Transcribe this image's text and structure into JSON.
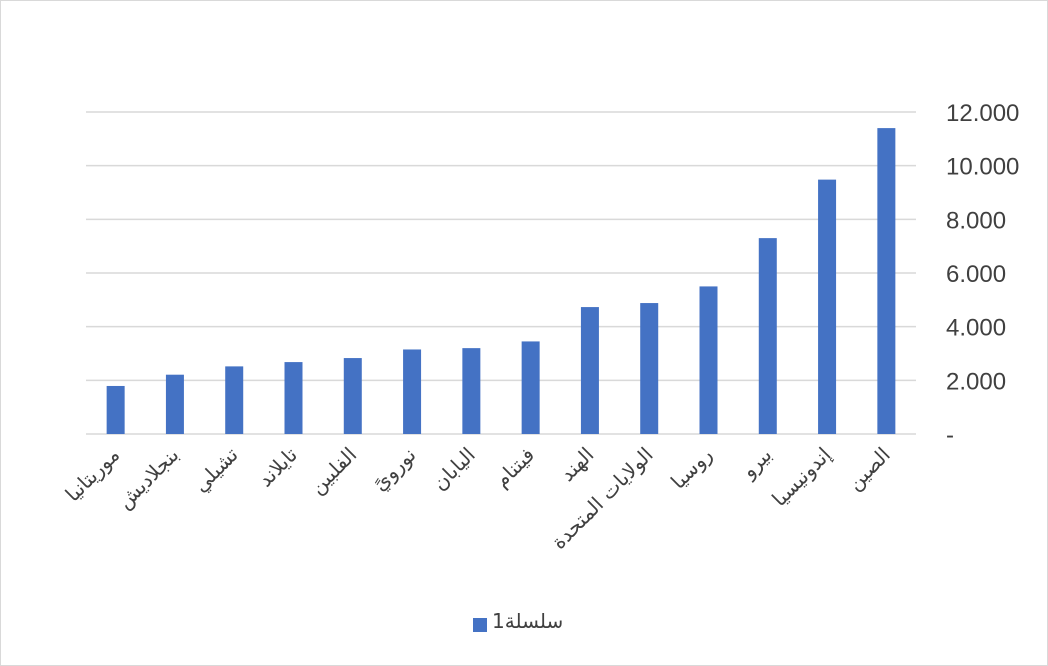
{
  "chart_data": {
    "type": "bar",
    "categories": [
      "الصين",
      "إندونيسيا",
      "بيرو",
      "روسيا",
      "الولايات المتحدة",
      "الهند",
      "فيتنام",
      "اليابان",
      "نورويً",
      "الفلبين",
      "تايلاند",
      "تشيلي",
      "بنجلاديش",
      "موريتانيا"
    ],
    "series": [
      {
        "name": "سلسلة1",
        "values": [
          11400,
          9480,
          7300,
          5500,
          4880,
          4730,
          3450,
          3200,
          3150,
          2830,
          2680,
          2520,
          2210,
          1790
        ]
      }
    ],
    "yticks": [
      "-",
      "2.000",
      "4.000",
      "6.000",
      "8.000",
      "10.000",
      "12.000"
    ],
    "ylim": [
      0,
      12000
    ],
    "grid": true,
    "y_axis_position": "right",
    "category_order": "right-to-left",
    "legend_position": "bottom",
    "bar_color": "#4472c4",
    "grid_color": "#d9d9d9",
    "text_color": "#404040"
  }
}
